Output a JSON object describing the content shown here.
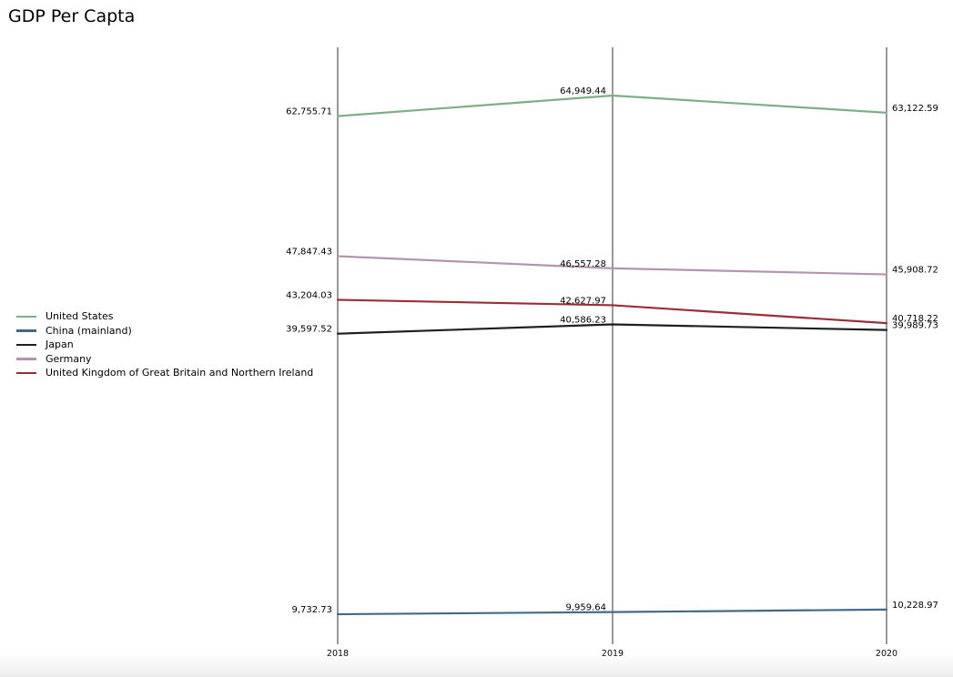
{
  "chart_data": {
    "type": "line",
    "title": "GDP Per Capta",
    "xlabel": "",
    "ylabel": "",
    "x": [
      "2018",
      "2019",
      "2020"
    ],
    "ylim": [
      9000,
      66000
    ],
    "grid": false,
    "legend_position": "left",
    "series": [
      {
        "name": "United States",
        "color": "#7daf86",
        "values": [
          62755.71,
          64949.44,
          63122.59
        ],
        "labels": [
          "62,755.71",
          "64,949.44",
          "63,122.59"
        ]
      },
      {
        "name": "China (mainland)",
        "color": "#426a87",
        "values": [
          9732.73,
          9959.64,
          10228.97
        ],
        "labels": [
          "9,732.73",
          "9,959.64",
          "10,228.97"
        ]
      },
      {
        "name": "Japan",
        "color": "#1f1f1f",
        "values": [
          39597.52,
          40586.23,
          39989.73
        ],
        "labels": [
          "39,597.52",
          "40,586.23",
          "39,989.73"
        ]
      },
      {
        "name": "Germany",
        "color": "#b493ad",
        "values": [
          47847.43,
          46557.28,
          45908.72
        ],
        "labels": [
          "47,847.43",
          "46,557.28",
          "45,908.72"
        ]
      },
      {
        "name": "United Kingdom of Great Britain and Northern Ireland",
        "color": "#9a2d37",
        "values": [
          43204.03,
          42627.97,
          40718.22
        ],
        "labels": [
          "43,204.03",
          "42,627.97",
          "40,718.22"
        ]
      }
    ]
  }
}
